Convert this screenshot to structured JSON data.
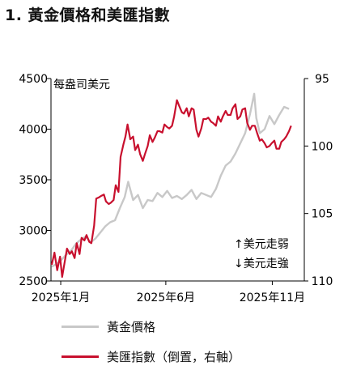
{
  "page": {
    "title": "1. 黃金價格和美匯指數"
  },
  "chart_data": {
    "type": "line",
    "title": "1. 黃金價格和美匯指數",
    "left_axis": {
      "label": "每盎司美元",
      "ticks": [
        2500,
        3000,
        3500,
        4000,
        4500
      ],
      "range": [
        2500,
        4500
      ]
    },
    "right_axis": {
      "inverted": true,
      "ticks": [
        95,
        100,
        105,
        110
      ],
      "range": [
        95,
        110
      ]
    },
    "x_axis": {
      "ticks": [
        "2025年1月",
        "2025年6月",
        "2025年11月"
      ],
      "range": [
        "2025-01-01",
        "2025-12-31"
      ]
    },
    "annotations": [
      "↑美元走弱",
      "↓美元走強"
    ],
    "legend": [
      "黃金價格",
      "美匯指數（倒置，右軸）"
    ],
    "colors": {
      "gold": "#c8c8c8",
      "usd": "#c8102e"
    },
    "series": [
      {
        "name": "黃金價格",
        "axis": "left",
        "color": "#c8c8c8",
        "x": [
          "2025-01-02",
          "2025-01-09",
          "2025-01-16",
          "2025-01-23",
          "2025-01-30",
          "2025-02-06",
          "2025-02-13",
          "2025-02-20",
          "2025-02-27",
          "2025-03-06",
          "2025-03-13",
          "2025-03-20",
          "2025-03-27",
          "2025-04-03",
          "2025-04-10",
          "2025-04-17",
          "2025-04-22",
          "2025-04-29",
          "2025-05-06",
          "2025-05-13",
          "2025-05-20",
          "2025-05-27",
          "2025-06-03",
          "2025-06-10",
          "2025-06-17",
          "2025-06-24",
          "2025-07-01",
          "2025-07-08",
          "2025-07-15",
          "2025-07-22",
          "2025-07-29",
          "2025-08-05",
          "2025-08-12",
          "2025-08-19",
          "2025-08-26",
          "2025-09-02",
          "2025-09-09",
          "2025-09-16",
          "2025-09-23",
          "2025-09-30",
          "2025-10-07",
          "2025-10-14",
          "2025-10-20",
          "2025-10-23",
          "2025-10-28",
          "2025-11-04",
          "2025-11-11",
          "2025-11-18",
          "2025-11-25",
          "2025-12-02",
          "2025-12-09"
        ],
        "values": [
          2640,
          2670,
          2710,
          2760,
          2800,
          2870,
          2910,
          2940,
          2880,
          2920,
          2980,
          3040,
          3080,
          3100,
          3220,
          3330,
          3480,
          3300,
          3350,
          3220,
          3300,
          3290,
          3370,
          3330,
          3390,
          3320,
          3340,
          3310,
          3350,
          3400,
          3310,
          3370,
          3350,
          3330,
          3410,
          3540,
          3640,
          3680,
          3760,
          3860,
          3960,
          4150,
          4350,
          4110,
          3960,
          4000,
          4130,
          4050,
          4140,
          4220,
          4200
        ]
      },
      {
        "name": "美匯指數（倒置，右軸）",
        "axis": "right",
        "color": "#c8102e",
        "x": [
          "2025-01-02",
          "2025-01-06",
          "2025-01-10",
          "2025-01-14",
          "2025-01-17",
          "2025-01-21",
          "2025-01-24",
          "2025-01-28",
          "2025-01-31",
          "2025-02-04",
          "2025-02-07",
          "2025-02-11",
          "2025-02-14",
          "2025-02-18",
          "2025-02-21",
          "2025-02-25",
          "2025-02-28",
          "2025-03-04",
          "2025-03-07",
          "2025-03-11",
          "2025-03-14",
          "2025-03-18",
          "2025-03-21",
          "2025-03-25",
          "2025-03-28",
          "2025-04-01",
          "2025-04-04",
          "2025-04-08",
          "2025-04-11",
          "2025-04-15",
          "2025-04-18",
          "2025-04-21",
          "2025-04-25",
          "2025-04-29",
          "2025-05-02",
          "2025-05-06",
          "2025-05-09",
          "2025-05-13",
          "2025-05-16",
          "2025-05-20",
          "2025-05-23",
          "2025-05-27",
          "2025-05-30",
          "2025-06-03",
          "2025-06-06",
          "2025-06-10",
          "2025-06-13",
          "2025-06-17",
          "2025-06-20",
          "2025-06-24",
          "2025-06-27",
          "2025-07-01",
          "2025-07-04",
          "2025-07-08",
          "2025-07-11",
          "2025-07-15",
          "2025-07-18",
          "2025-07-22",
          "2025-07-25",
          "2025-07-29",
          "2025-08-01",
          "2025-08-05",
          "2025-08-08",
          "2025-08-12",
          "2025-08-15",
          "2025-08-19",
          "2025-08-22",
          "2025-08-26",
          "2025-08-29",
          "2025-09-02",
          "2025-09-05",
          "2025-09-09",
          "2025-09-12",
          "2025-09-16",
          "2025-09-19",
          "2025-09-23",
          "2025-09-26",
          "2025-09-30",
          "2025-10-03",
          "2025-10-07",
          "2025-10-10",
          "2025-10-14",
          "2025-10-17",
          "2025-10-21",
          "2025-10-24",
          "2025-10-28",
          "2025-10-31",
          "2025-11-04",
          "2025-11-07",
          "2025-11-11",
          "2025-11-14",
          "2025-11-18",
          "2025-11-21",
          "2025-11-25",
          "2025-11-28",
          "2025-12-02",
          "2025-12-05",
          "2025-12-09",
          "2025-12-12"
        ],
        "values": [
          108.8,
          107.9,
          109.2,
          108.2,
          109.7,
          108.5,
          107.6,
          108.0,
          107.8,
          108.3,
          107.2,
          108.0,
          106.8,
          107.0,
          106.6,
          107.1,
          107.2,
          105.9,
          103.9,
          103.8,
          103.7,
          103.6,
          104.1,
          104.3,
          104.2,
          104.0,
          102.9,
          103.4,
          100.8,
          99.9,
          99.3,
          98.4,
          99.5,
          99.3,
          100.3,
          99.9,
          100.6,
          101.1,
          100.6,
          100.0,
          99.2,
          99.7,
          99.4,
          98.9,
          98.9,
          99.0,
          98.4,
          98.6,
          98.7,
          98.5,
          97.8,
          96.6,
          97.0,
          97.5,
          97.6,
          97.2,
          97.8,
          97.2,
          97.3,
          98.8,
          99.3,
          98.7,
          98.0,
          98.0,
          97.9,
          98.2,
          98.3,
          98.5,
          97.8,
          98.2,
          97.8,
          97.4,
          97.7,
          97.7,
          97.2,
          96.9,
          98.0,
          97.8,
          97.3,
          97.2,
          98.3,
          98.8,
          98.5,
          98.5,
          99.0,
          99.6,
          99.5,
          99.8,
          100.1,
          100.0,
          99.8,
          99.6,
          100.2,
          100.2,
          99.7,
          99.5,
          99.3,
          98.9,
          98.5
        ]
      }
    ]
  }
}
